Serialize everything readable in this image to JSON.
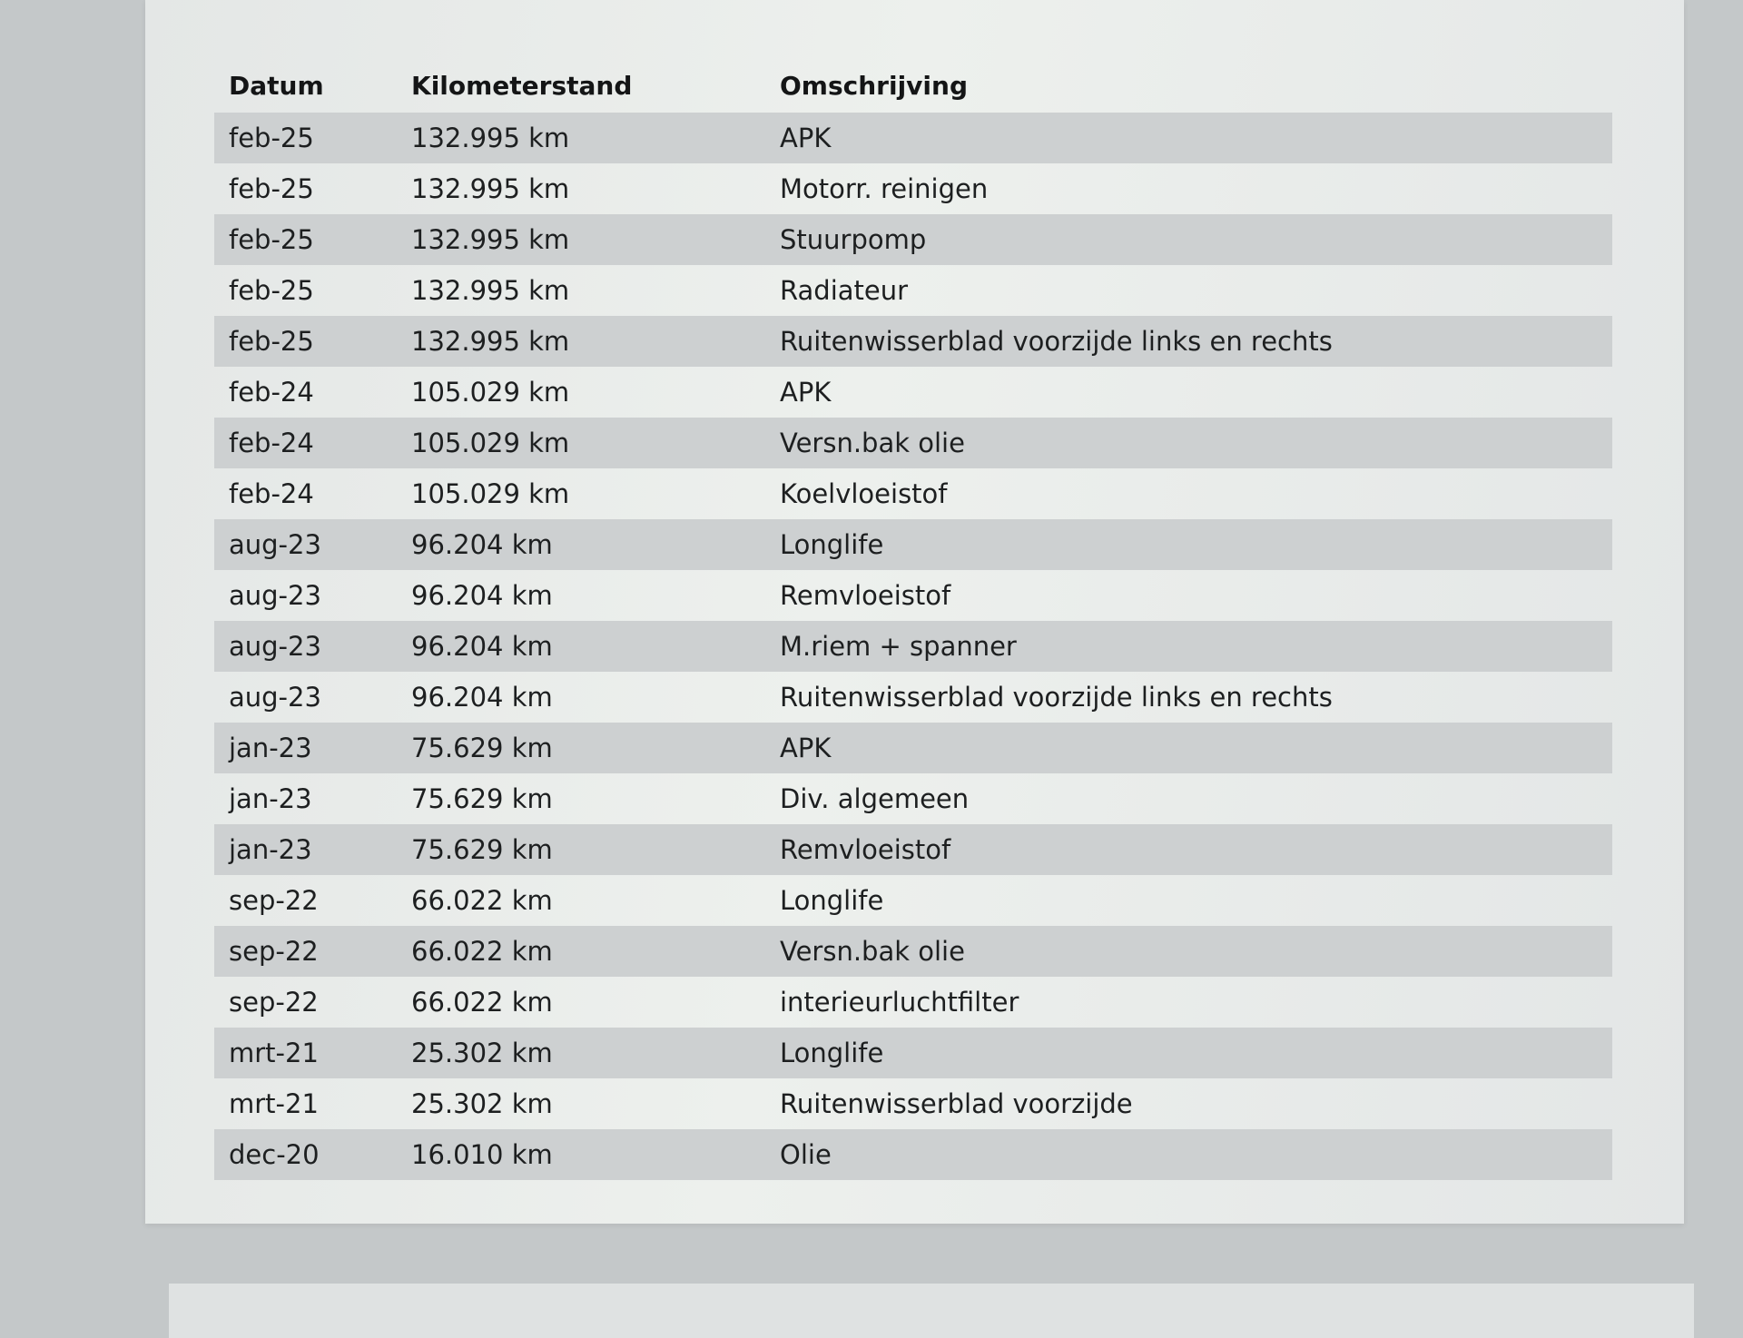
{
  "table": {
    "headers": [
      "Datum",
      "Kilometerstand",
      "Omschrijving"
    ],
    "rows": [
      [
        "feb-25",
        "132.995 km",
        "APK"
      ],
      [
        "feb-25",
        "132.995 km",
        "Motorr. reinigen"
      ],
      [
        "feb-25",
        "132.995 km",
        "Stuurpomp"
      ],
      [
        "feb-25",
        "132.995 km",
        "Radiateur"
      ],
      [
        "feb-25",
        "132.995 km",
        "Ruitenwisserblad voorzijde links en rechts"
      ],
      [
        "feb-24",
        "105.029 km",
        "APK"
      ],
      [
        "feb-24",
        "105.029 km",
        "Versn.bak olie"
      ],
      [
        "feb-24",
        "105.029 km",
        "Koelvloeistof"
      ],
      [
        "aug-23",
        "96.204 km",
        "Longlife"
      ],
      [
        "aug-23",
        "96.204 km",
        "Remvloeistof"
      ],
      [
        "aug-23",
        "96.204 km",
        "M.riem + spanner"
      ],
      [
        "aug-23",
        "96.204 km",
        "Ruitenwisserblad voorzijde links en rechts"
      ],
      [
        "jan-23",
        "75.629 km",
        "APK"
      ],
      [
        "jan-23",
        "75.629 km",
        "Div. algemeen"
      ],
      [
        "jan-23",
        "75.629 km",
        "Remvloeistof"
      ],
      [
        "sep-22",
        "66.022 km",
        "Longlife"
      ],
      [
        "sep-22",
        "66.022 km",
        "Versn.bak olie"
      ],
      [
        "sep-22",
        "66.022 km",
        "interieurluchtfilter"
      ],
      [
        "mrt-21",
        "25.302 km",
        "Longlife"
      ],
      [
        "mrt-21",
        "25.302 km",
        "Ruitenwisserblad voorzijde"
      ],
      [
        "dec-20",
        "16.010 km",
        "Olie"
      ]
    ]
  }
}
